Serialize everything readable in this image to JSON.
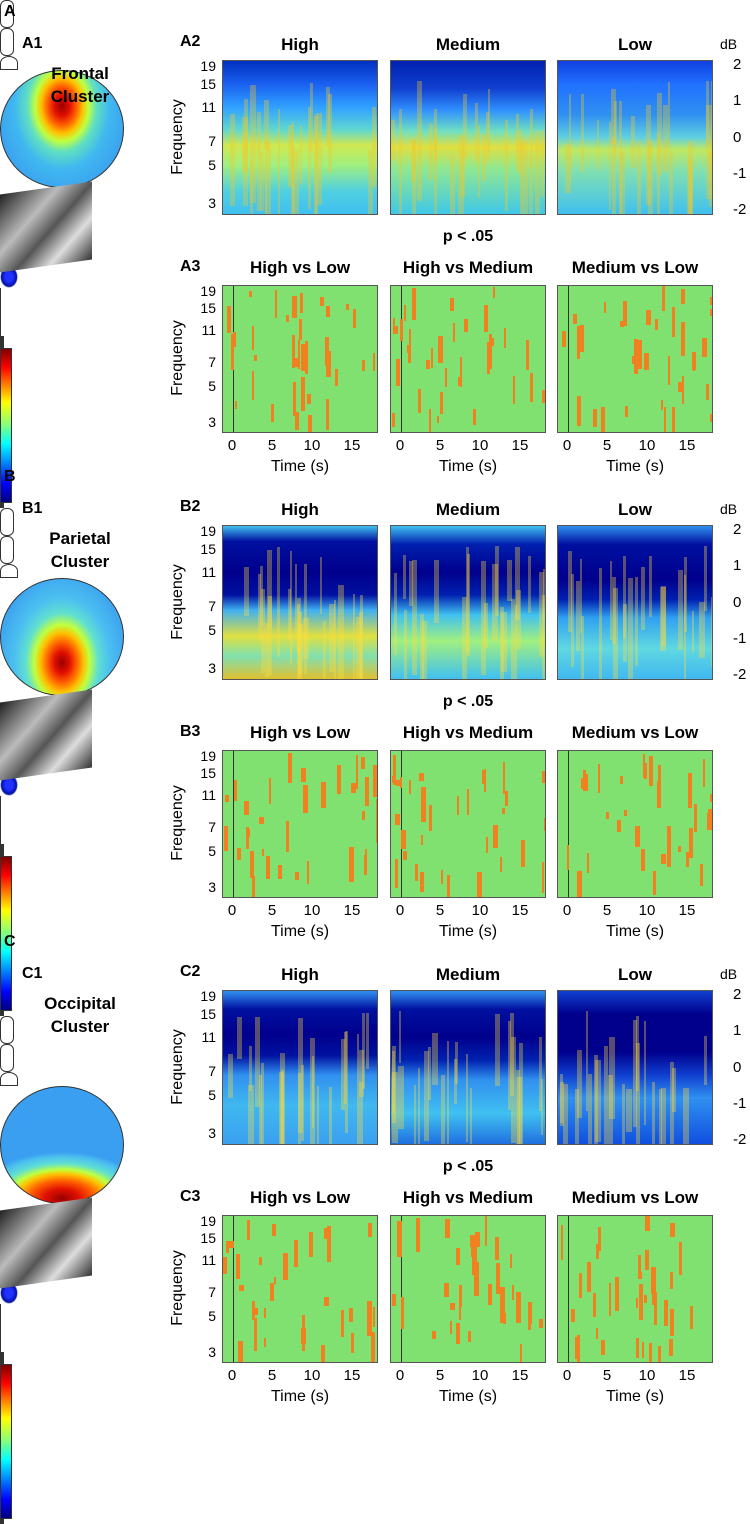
{
  "sections": [
    {
      "label": "A",
      "panel1": "A1",
      "cluster": "Frontal Cluster",
      "panel2": "A2",
      "conditions": [
        "High",
        "Medium",
        "Low"
      ],
      "p_label": "p < .05",
      "panel3": "A3",
      "contrasts": [
        "High vs Low",
        "High vs Medium",
        "Medium vs Low"
      ]
    },
    {
      "label": "B",
      "panel1": "B1",
      "cluster": "Parietal Cluster",
      "panel2": "B2",
      "conditions": [
        "High",
        "Medium",
        "Low"
      ],
      "p_label": "p < .05",
      "panel3": "B3",
      "contrasts": [
        "High vs Low",
        "High vs Medium",
        "Medium vs Low"
      ]
    },
    {
      "label": "C",
      "panel1": "C1",
      "cluster": "Occipital Cluster",
      "panel2": "C2",
      "conditions": [
        "High",
        "Medium",
        "Low"
      ],
      "p_label": "p < .05",
      "panel3": "C3",
      "contrasts": [
        "High vs Low",
        "High vs Medium",
        "Medium vs Low"
      ]
    }
  ],
  "axes": {
    "ylabel": "Frequency",
    "xlabel": "Time (s)",
    "yscale": "log",
    "ylim": [
      2.6,
      21
    ],
    "yticks": [
      3,
      5,
      7,
      11,
      15,
      19
    ],
    "xlim": [
      -1.25,
      18.25
    ],
    "xticks": [
      0,
      5,
      10,
      15
    ],
    "colorbar": {
      "unit": "dB",
      "lim": [
        -2.15,
        2.15
      ],
      "ticks": [
        -2,
        -1,
        0,
        1,
        2
      ]
    }
  }
}
